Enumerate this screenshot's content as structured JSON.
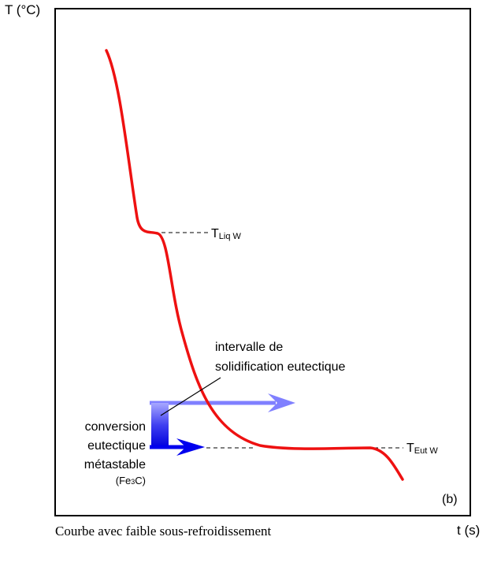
{
  "axes": {
    "y_label": "T (°C)",
    "x_label": "t (s)"
  },
  "panel_label": "(b)",
  "caption": "Courbe avec faible sous-refroidissement",
  "annotations": {
    "liquidus": {
      "symbol": "T",
      "subscript": "Liq W"
    },
    "eutectic": {
      "symbol": "T",
      "subscript": "Eut W"
    },
    "interval": {
      "line1": "intervalle de",
      "line2": "solidification eutectique"
    },
    "conversion": {
      "line1": "conversion",
      "line2": "eutectique",
      "line3": "métastable",
      "line4": "(Fe",
      "line4_sub": "3",
      "line4_end": "C)"
    }
  },
  "colors": {
    "curve": "#ee1111",
    "dark_arrow": "#0000ee",
    "light_arrow": "#8080ff",
    "frame": "#000000"
  }
}
